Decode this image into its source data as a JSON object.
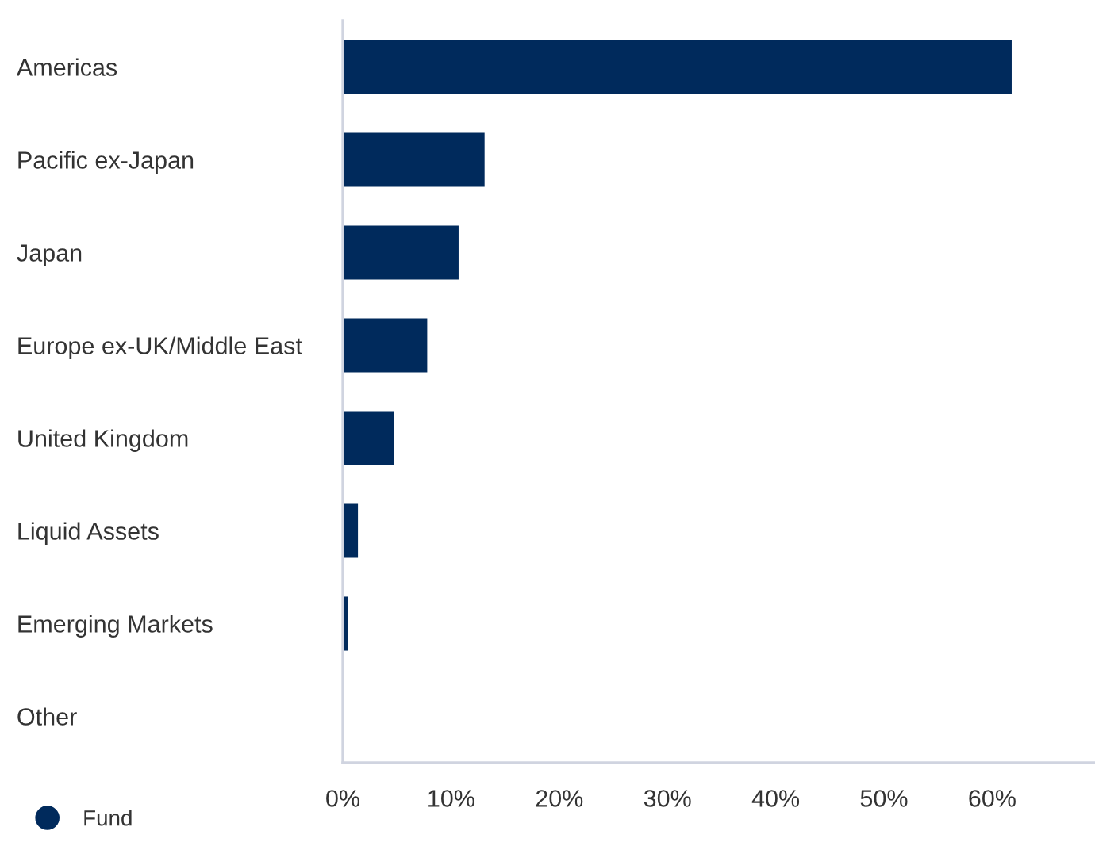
{
  "chart_data": {
    "type": "bar",
    "orientation": "horizontal",
    "categories": [
      "Americas",
      "Pacific ex-Japan",
      "Japan",
      "Europe ex-UK/Middle East",
      "United Kingdom",
      "Liquid Assets",
      "Emerging Markets",
      "Other"
    ],
    "series": [
      {
        "name": "Fund",
        "color": "#002a5c",
        "values": [
          61.8,
          13.1,
          10.7,
          7.8,
          4.7,
          1.4,
          0.5,
          0
        ]
      }
    ],
    "xlim": [
      0,
      69.5
    ],
    "xticks": [
      {
        "value": 0,
        "label": "0%"
      },
      {
        "value": 10,
        "label": "10%"
      },
      {
        "value": 20,
        "label": "20%"
      },
      {
        "value": 30,
        "label": "30%"
      },
      {
        "value": 40,
        "label": "40%"
      },
      {
        "value": 50,
        "label": "50%"
      },
      {
        "value": 60,
        "label": "60%"
      }
    ],
    "grid": false,
    "legend": "bottom left"
  }
}
